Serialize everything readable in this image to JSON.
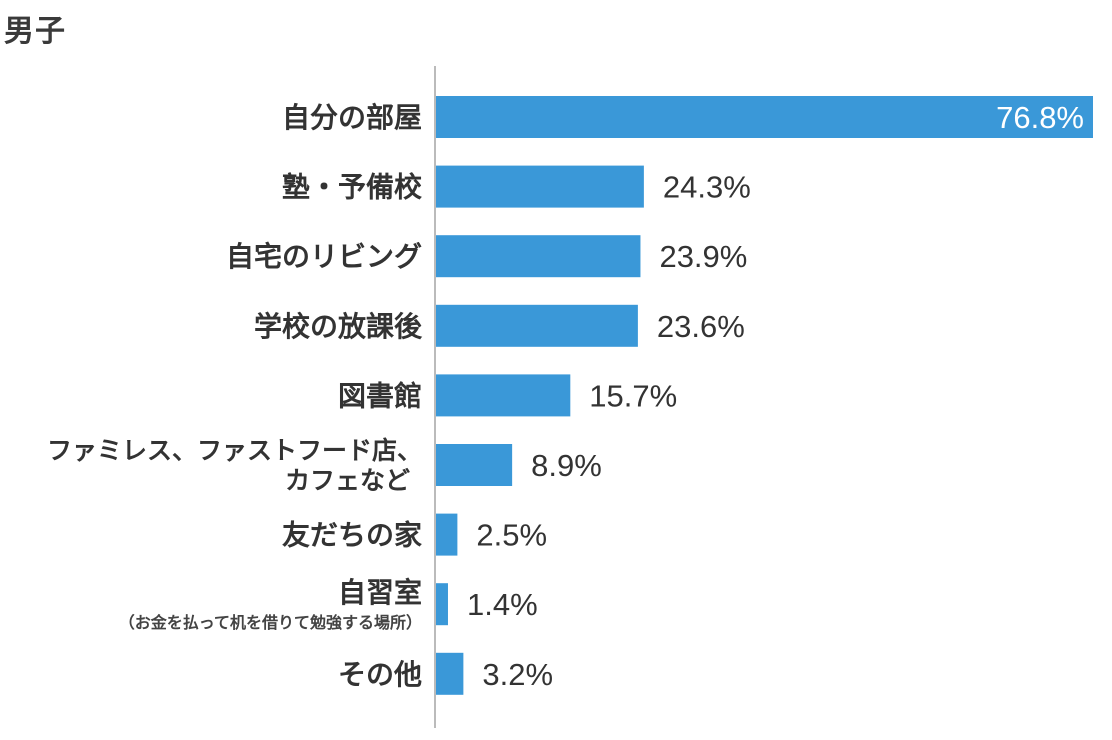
{
  "chart_data": {
    "type": "bar",
    "orientation": "horizontal",
    "title": "男子",
    "categories": [
      [
        "自分の部屋"
      ],
      [
        "塾・予備校"
      ],
      [
        "自宅のリビング"
      ],
      [
        "学校の放課後"
      ],
      [
        "図書館"
      ],
      [
        "ファミレス、ファストフード店、",
        "カフェなど"
      ],
      [
        "友だちの家"
      ],
      [
        "自習室",
        "（お金を払って机を借りて勉強する場所）"
      ],
      [
        "その他"
      ]
    ],
    "values": [
      76.8,
      24.3,
      23.9,
      23.6,
      15.7,
      8.9,
      2.5,
      1.4,
      3.2
    ],
    "value_labels": [
      "76.8%",
      "24.3%",
      "23.9%",
      "23.6%",
      "15.7%",
      "8.9%",
      "2.5%",
      "1.4%",
      "3.2%"
    ],
    "xlim": [
      0,
      76.8
    ],
    "grid": false,
    "legend": "none",
    "bar_color": "#3a98d8",
    "axis_color": "#bbbbbb"
  }
}
